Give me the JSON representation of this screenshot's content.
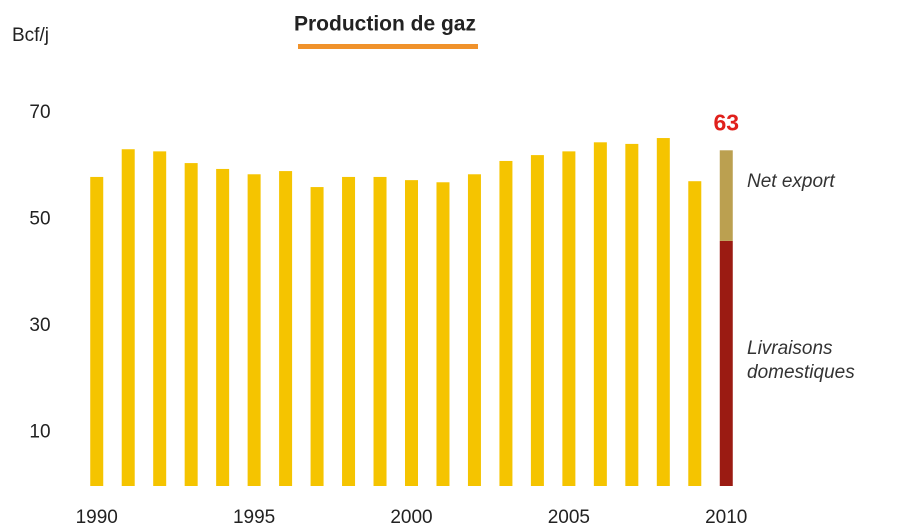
{
  "chart_data": {
    "type": "bar",
    "title": "Production de gaz",
    "y_label": "Bcf/j",
    "x": [
      1990,
      1991,
      1992,
      1993,
      1994,
      1995,
      1996,
      1997,
      1998,
      1999,
      2000,
      2001,
      2002,
      2003,
      2004,
      2005,
      2006,
      2007,
      2008,
      2009,
      2010
    ],
    "xlim": [
      1989.5,
      2010.5
    ],
    "xticks": [
      1990,
      1995,
      2000,
      2005,
      2010
    ],
    "ylim": [
      0,
      70
    ],
    "yticks": [
      10,
      30,
      50,
      70
    ],
    "grid": false,
    "stacked": true,
    "series": [
      {
        "color": "#f5c400",
        "values": [
          58.0,
          63.2,
          62.8,
          60.6,
          59.5,
          58.5,
          59.1,
          56.1,
          58.0,
          58.0,
          57.4,
          57.0,
          58.5,
          61.0,
          62.1,
          62.8,
          64.5,
          64.2,
          65.3,
          57.2,
          null
        ]
      },
      {
        "name": "Livraisons domestiques",
        "color": "#9b1b12",
        "values": [
          null,
          null,
          null,
          null,
          null,
          null,
          null,
          null,
          null,
          null,
          null,
          null,
          null,
          null,
          null,
          null,
          null,
          null,
          null,
          null,
          46
        ]
      },
      {
        "name": "Net export",
        "color": "#bba050",
        "values": [
          null,
          null,
          null,
          null,
          null,
          null,
          null,
          null,
          null,
          null,
          null,
          null,
          null,
          null,
          null,
          null,
          null,
          null,
          null,
          null,
          17
        ]
      }
    ],
    "annotations": [
      {
        "text": "63",
        "x": 2010,
        "color": "#e0201b"
      }
    ]
  }
}
